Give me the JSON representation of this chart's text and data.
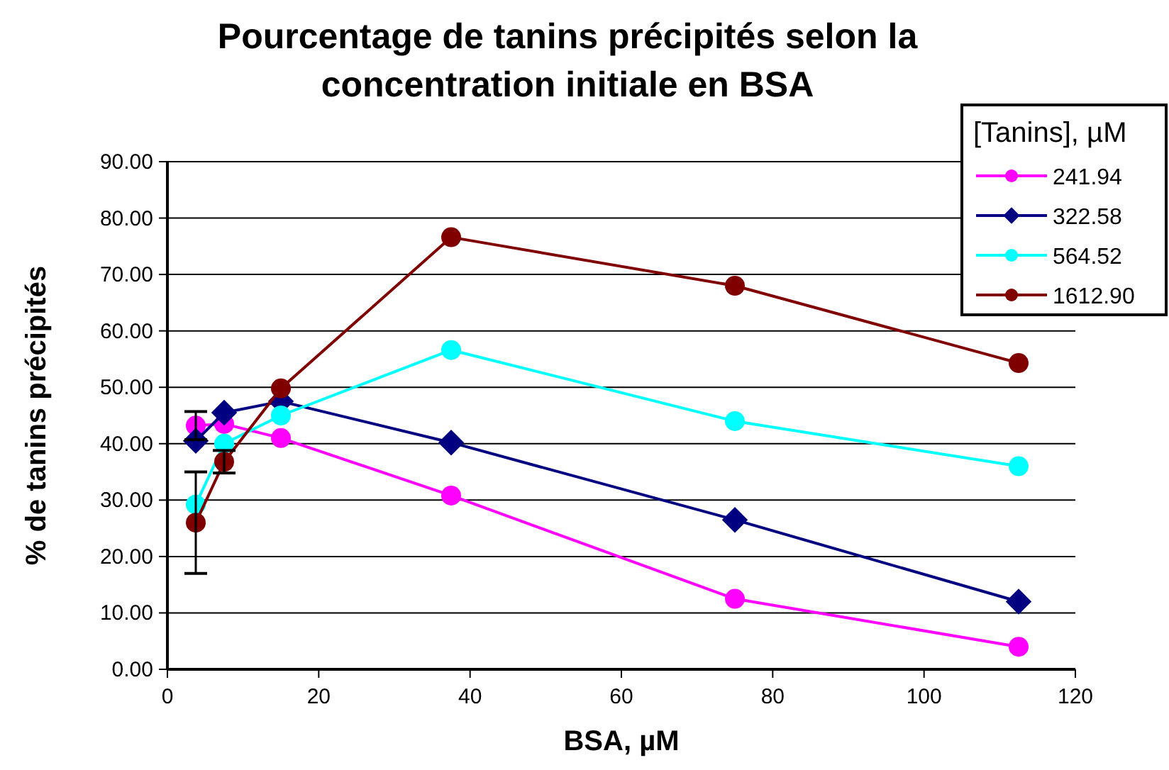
{
  "chart_data": {
    "type": "line",
    "title": "Pourcentage de tanins précipités selon la concentration initiale en BSA",
    "xlabel": "BSA, µM",
    "ylabel": "% de tanins précipités",
    "legend_title": "[Tanins], µM",
    "x": [
      3.75,
      7.5,
      15,
      37.5,
      75,
      112.5
    ],
    "xlim": [
      0,
      120
    ],
    "xticks": [
      0,
      20,
      40,
      60,
      80,
      100,
      120
    ],
    "ylim": [
      0,
      90
    ],
    "yticks": [
      {
        "value": 0,
        "label": "0.00"
      },
      {
        "value": 10,
        "label": "10.00"
      },
      {
        "value": 20,
        "label": "20.00"
      },
      {
        "value": 30,
        "label": "30.00"
      },
      {
        "value": 40,
        "label": "40.00"
      },
      {
        "value": 50,
        "label": "50.00"
      },
      {
        "value": 60,
        "label": "60.00"
      },
      {
        "value": 70,
        "label": "70.00"
      },
      {
        "value": 80,
        "label": "80.00"
      },
      {
        "value": 90,
        "label": "90.00"
      }
    ],
    "grid": "y",
    "legend": "top right",
    "series": [
      {
        "name": "241.94",
        "color": "#ff00ff",
        "marker": "circle",
        "values": [
          43.2,
          43.5,
          41,
          30.8,
          12.5,
          4
        ],
        "errors": [
          2.5,
          null,
          null,
          null,
          null,
          null
        ]
      },
      {
        "name": "322.58",
        "color": "#000080",
        "marker": "diamond",
        "values": [
          40.5,
          45.5,
          47.5,
          40.2,
          26.5,
          12
        ]
      },
      {
        "name": "564.52",
        "color": "#00ffff",
        "marker": "circle",
        "values": [
          29.2,
          40,
          45,
          56.6,
          44,
          36
        ]
      },
      {
        "name": "1612.90",
        "color": "#800000",
        "marker": "circle",
        "values": [
          26,
          36.8,
          49.8,
          76.6,
          68,
          54.3
        ],
        "errors": [
          9,
          2,
          null,
          null,
          null,
          null
        ]
      }
    ]
  }
}
